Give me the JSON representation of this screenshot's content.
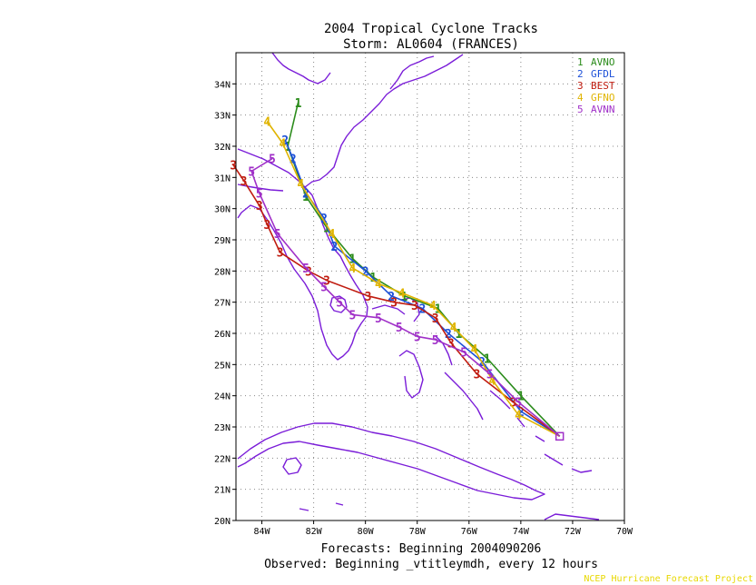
{
  "title": {
    "line1": "2004 Tropical Cyclone Tracks",
    "line2": "Storm: AL0604 (FRANCES)"
  },
  "axes": {
    "lon_ticks": [
      "84W",
      "82W",
      "80W",
      "78W",
      "76W",
      "74W",
      "72W",
      "70W"
    ],
    "lat_ticks": [
      "34N",
      "33N",
      "32N",
      "31N",
      "30N",
      "29N",
      "28N",
      "27N",
      "26N",
      "25N",
      "24N",
      "23N",
      "22N",
      "21N",
      "20N"
    ]
  },
  "legend": [
    {
      "num": "1",
      "label": "AVNO",
      "color": "#2c8c1c"
    },
    {
      "num": "2",
      "label": "GFDL",
      "color": "#1c50d8"
    },
    {
      "num": "3",
      "label": "BEST",
      "color": "#c01c10"
    },
    {
      "num": "4",
      "label": "GFNO",
      "color": "#e0b400"
    },
    {
      "num": "5",
      "label": "AVNN",
      "color": "#a030c8"
    }
  ],
  "footer": {
    "line1": "Forecasts: Beginning 2004090206",
    "line2": "Observed: Beginning _vtitleymdh, every 12 hours",
    "credit": "NCEP Hurricane Forecast Project",
    "credit_color": "#e8d800"
  },
  "colors": {
    "coastline": "#7a1cd8",
    "grid": "#888888"
  },
  "chart_data": {
    "type": "map-track",
    "lon_range": [
      -85,
      -70
    ],
    "lat_range": [
      20,
      35
    ],
    "tracks": [
      {
        "num": "1",
        "name": "AVNO",
        "points": [
          [
            -72.5,
            22.7
          ],
          [
            -74,
            24
          ],
          [
            -75.3,
            25.2
          ],
          [
            -76.4,
            26
          ],
          [
            -77.2,
            26.8
          ],
          [
            -78.5,
            27.2
          ],
          [
            -79.7,
            27.8
          ],
          [
            -80.5,
            28.4
          ],
          [
            -81.5,
            29.4
          ],
          [
            -82.3,
            30.4
          ],
          [
            -83,
            32
          ],
          [
            -82.6,
            33.4
          ]
        ]
      },
      {
        "num": "2",
        "name": "GFDL",
        "points": [
          [
            -72.5,
            22.7
          ],
          [
            -74,
            23.5
          ],
          [
            -75.5,
            25.1
          ],
          [
            -76.8,
            26
          ],
          [
            -77.8,
            26.8
          ],
          [
            -79,
            27.2
          ],
          [
            -80,
            28
          ],
          [
            -81.2,
            28.8
          ],
          [
            -81.6,
            29.7
          ],
          [
            -82.3,
            30.5
          ],
          [
            -82.8,
            31.6
          ],
          [
            -83.1,
            32.2
          ]
        ]
      },
      {
        "num": "3",
        "name": "BEST",
        "points": [
          [
            -72.5,
            22.7
          ],
          [
            -74.3,
            23.8
          ],
          [
            -75.7,
            24.7
          ],
          [
            -76.7,
            25.7
          ],
          [
            -77.3,
            26.5
          ],
          [
            -78.1,
            26.9
          ],
          [
            -78.9,
            27.0
          ],
          [
            -79.9,
            27.2
          ],
          [
            -81.5,
            27.7
          ],
          [
            -82.2,
            28.0
          ],
          [
            -83.3,
            28.6
          ],
          [
            -83.8,
            29.5
          ],
          [
            -84.1,
            30.1
          ],
          [
            -84.7,
            30.9
          ],
          [
            -85.1,
            31.4
          ]
        ]
      },
      {
        "num": "4",
        "name": "GFNO",
        "points": [
          [
            -72.5,
            22.7
          ],
          [
            -74.1,
            23.4
          ],
          [
            -75.1,
            24.5
          ],
          [
            -75.8,
            25.5
          ],
          [
            -76.6,
            26.2
          ],
          [
            -77.4,
            26.9
          ],
          [
            -78.6,
            27.3
          ],
          [
            -79.5,
            27.6
          ],
          [
            -80.5,
            28.1
          ],
          [
            -81.3,
            29.2
          ],
          [
            -82.5,
            30.8
          ],
          [
            -83.2,
            32.1
          ],
          [
            -83.8,
            32.8
          ]
        ]
      },
      {
        "num": "5",
        "name": "AVNN",
        "points": [
          [
            -72.5,
            22.7
          ],
          [
            -74.1,
            23.8
          ],
          [
            -75.2,
            24.7
          ],
          [
            -76.2,
            25.4
          ],
          [
            -77.3,
            25.8
          ],
          [
            -78,
            25.9
          ],
          [
            -78.7,
            26.2
          ],
          [
            -79.5,
            26.5
          ],
          [
            -80.5,
            26.6
          ],
          [
            -81,
            27.0
          ],
          [
            -81.6,
            27.5
          ],
          [
            -82.3,
            28.1
          ],
          [
            -83.4,
            29.2
          ],
          [
            -84.1,
            30.5
          ],
          [
            -84.4,
            31.2
          ],
          [
            -83.6,
            31.6
          ]
        ]
      }
    ]
  }
}
